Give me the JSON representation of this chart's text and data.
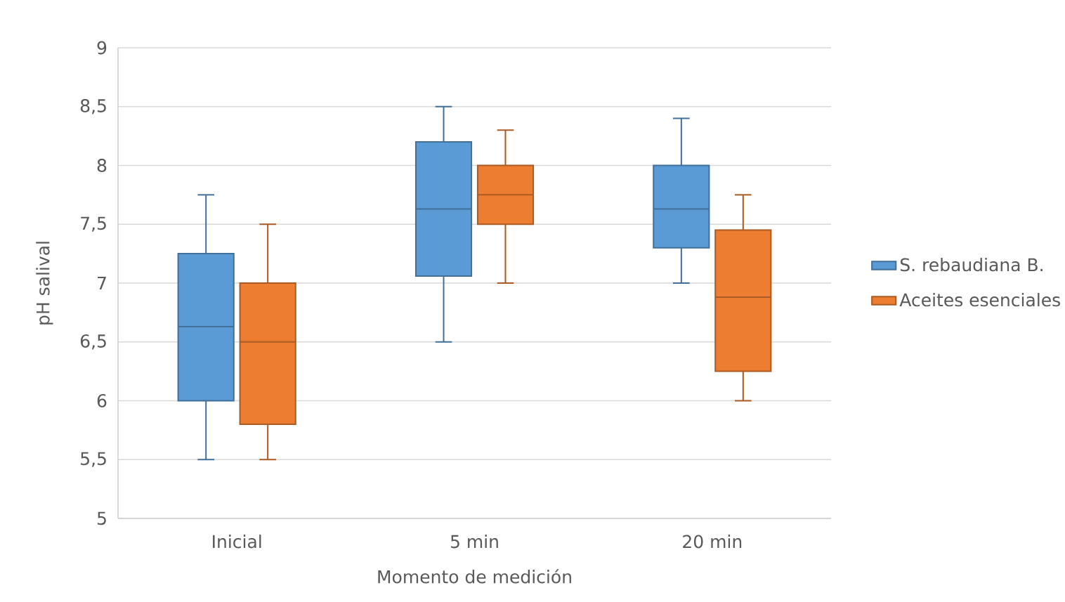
{
  "chart_data": {
    "type": "box",
    "xlabel": "Momento de medición",
    "ylabel": "pH salival",
    "categories": [
      "Inicial",
      "5 min",
      "20 min"
    ],
    "series": [
      {
        "name": "S. rebaudiana B.",
        "color": "#5b9bd5",
        "boxes": [
          {
            "low": 5.5,
            "q1": 6.0,
            "median": 6.63,
            "q3": 7.25,
            "high": 7.75
          },
          {
            "low": 6.5,
            "q1": 7.06,
            "median": 7.63,
            "q3": 8.2,
            "high": 8.5
          },
          {
            "low": 7.0,
            "q1": 7.3,
            "median": 7.63,
            "q3": 8.0,
            "high": 8.4
          }
        ]
      },
      {
        "name": "Aceites esenciales",
        "color": "#ed7d31",
        "boxes": [
          {
            "low": 5.5,
            "q1": 5.8,
            "median": 6.5,
            "q3": 7.0,
            "high": 7.5
          },
          {
            "low": 7.0,
            "q1": 7.5,
            "median": 7.75,
            "q3": 8.0,
            "high": 8.3
          },
          {
            "low": 6.0,
            "q1": 6.25,
            "median": 6.88,
            "q3": 7.45,
            "high": 7.75
          }
        ]
      }
    ],
    "ylim": [
      5,
      9
    ],
    "yticks": [
      5,
      {
        "value": 5.5,
        "label": "5,5"
      },
      6,
      {
        "value": 6.5,
        "label": "6,5"
      },
      7,
      {
        "value": 7.5,
        "label": "7,5"
      },
      8,
      {
        "value": 8.5,
        "label": "8,5"
      },
      9
    ],
    "grid": "y",
    "legend": "right"
  }
}
